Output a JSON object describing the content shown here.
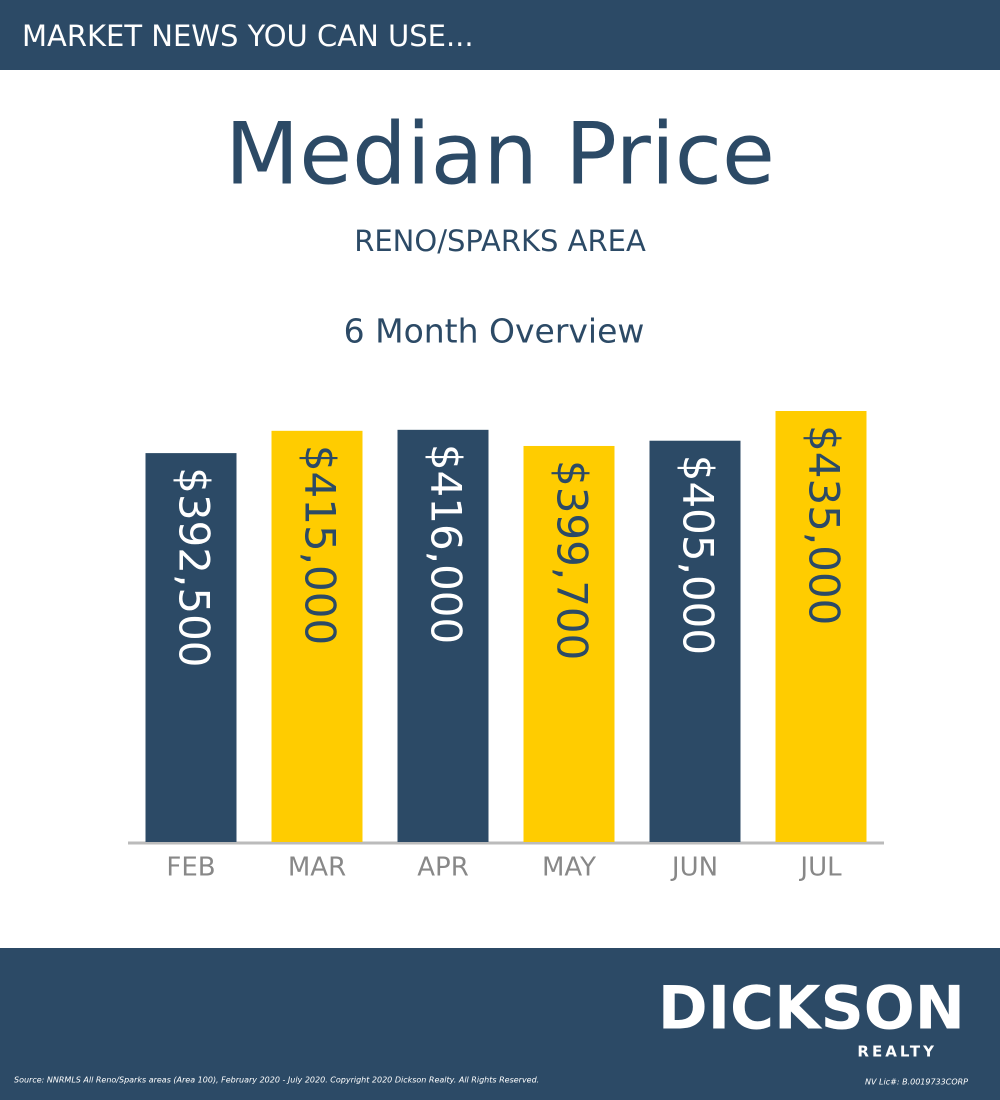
{
  "header": "MARKET NEWS YOU CAN USE...",
  "chart_data": {
    "type": "bar",
    "title": "Median Price",
    "subtitle": "RENO/SPARKS AREA",
    "period": "6 Month Overview",
    "categories": [
      "FEB",
      "MAR",
      "APR",
      "MAY",
      "JUN",
      "JUL"
    ],
    "values": [
      392500,
      415000,
      416000,
      399700,
      405000,
      435000
    ],
    "value_labels": [
      "$392,500",
      "$415,000",
      "$416,000",
      "$399,700",
      "$405,000",
      "$435,000"
    ],
    "colors": [
      "#2c4a66",
      "#ffcc00",
      "#2c4a66",
      "#ffcc00",
      "#2c4a66",
      "#ffcc00"
    ],
    "label_colors": [
      "#ffffff",
      "#2c4a66",
      "#ffffff",
      "#2c4a66",
      "#ffffff",
      "#2c4a66"
    ]
  },
  "footer": {
    "logo": "DICKSON",
    "logo_sub": "REALTY",
    "source": "Source: NNRMLS All Reno/Sparks areas (Area 100), February 2020 - July 2020. Copyright 2020 Dickson Realty. All Rights Reserved.",
    "license": "NV Lic#: B.0019733CORP"
  }
}
